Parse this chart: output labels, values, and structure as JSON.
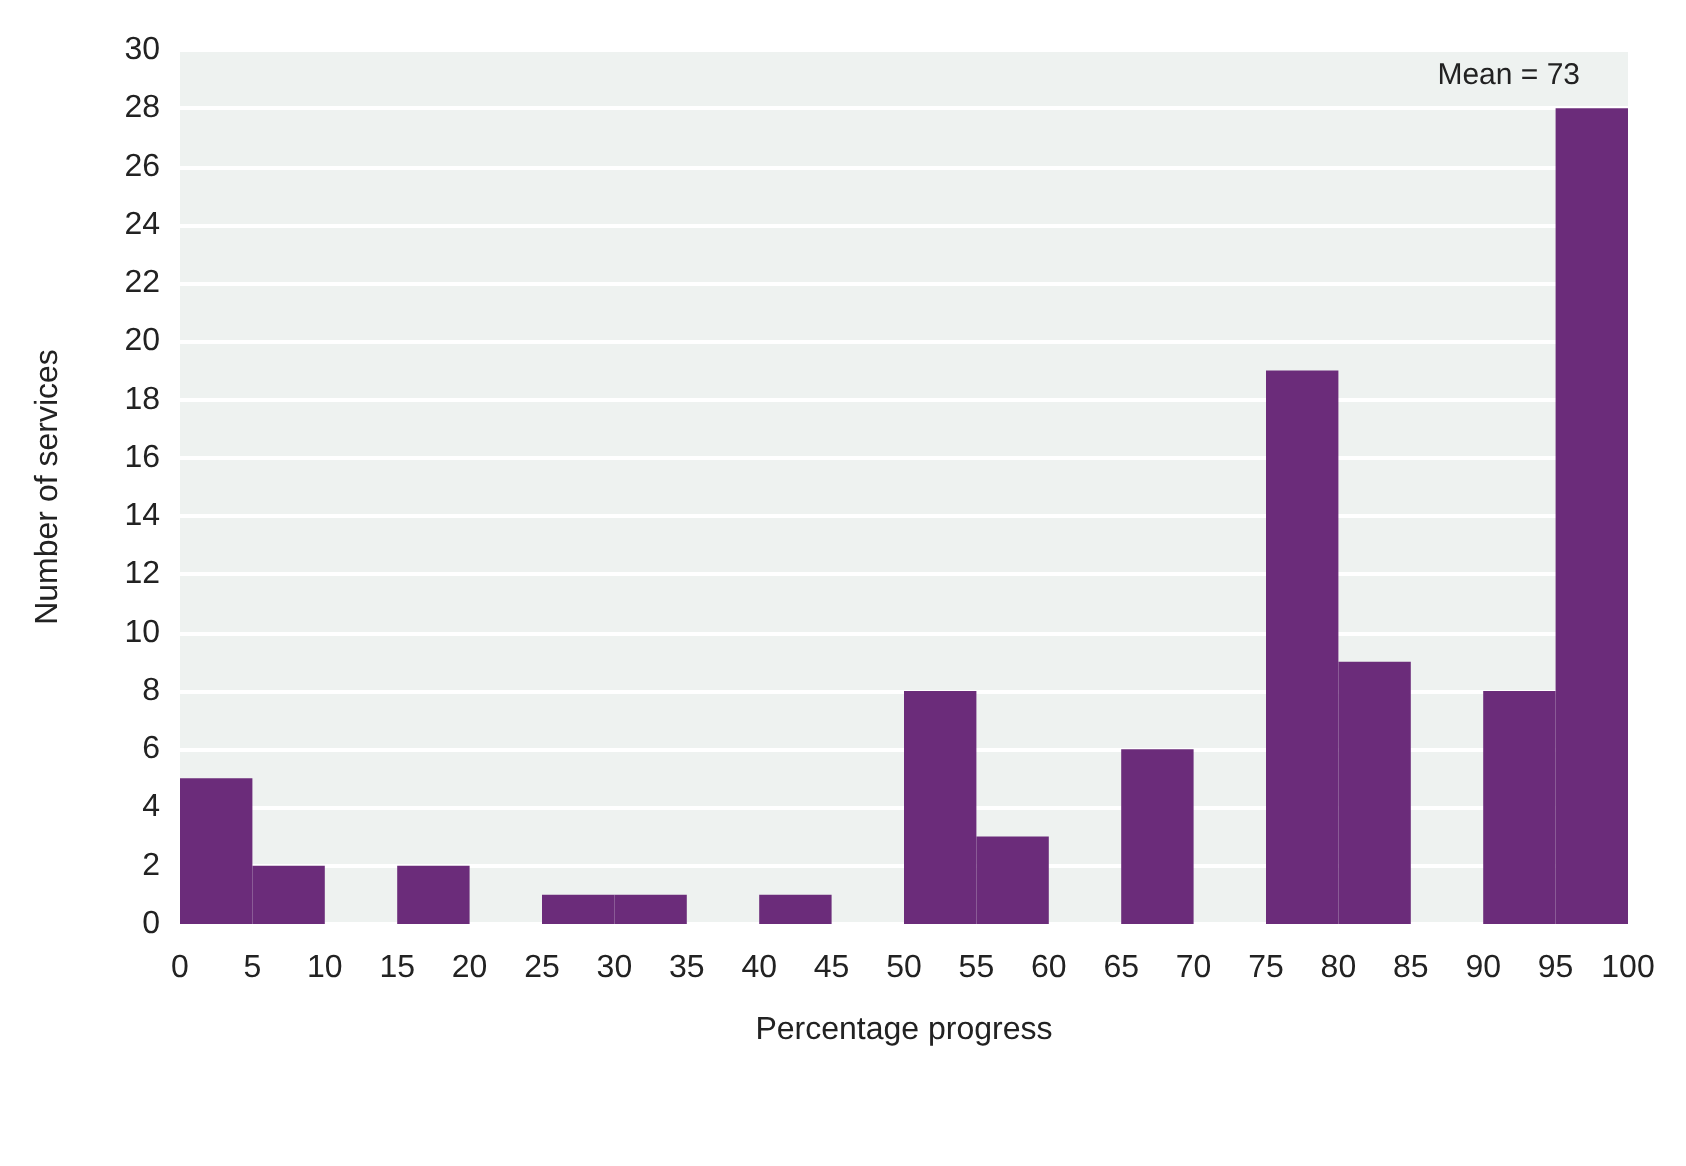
{
  "chart_data": {
    "type": "histogram",
    "xlabel": "Percentage progress",
    "ylabel": "Number of services",
    "annotations": [
      "Mean = 73"
    ],
    "bins": [
      0,
      5,
      10,
      15,
      20,
      25,
      30,
      35,
      40,
      45,
      50,
      55,
      60,
      65,
      70,
      75,
      80,
      85,
      90,
      95,
      100
    ],
    "values": [
      5,
      2,
      0,
      2,
      0,
      1,
      1,
      0,
      1,
      0,
      8,
      3,
      0,
      6,
      0,
      19,
      9,
      0,
      8,
      28
    ],
    "color": "#6b2c7a",
    "xlim": [
      0,
      100
    ],
    "xticks": [
      0,
      5,
      10,
      15,
      20,
      25,
      30,
      35,
      40,
      45,
      50,
      55,
      60,
      65,
      70,
      75,
      80,
      85,
      90,
      95,
      100
    ],
    "ylim": [
      0,
      30
    ],
    "yticks": [
      0,
      2,
      4,
      6,
      8,
      10,
      12,
      14,
      16,
      18,
      20,
      22,
      24,
      26,
      28,
      30
    ],
    "grid": "y"
  }
}
